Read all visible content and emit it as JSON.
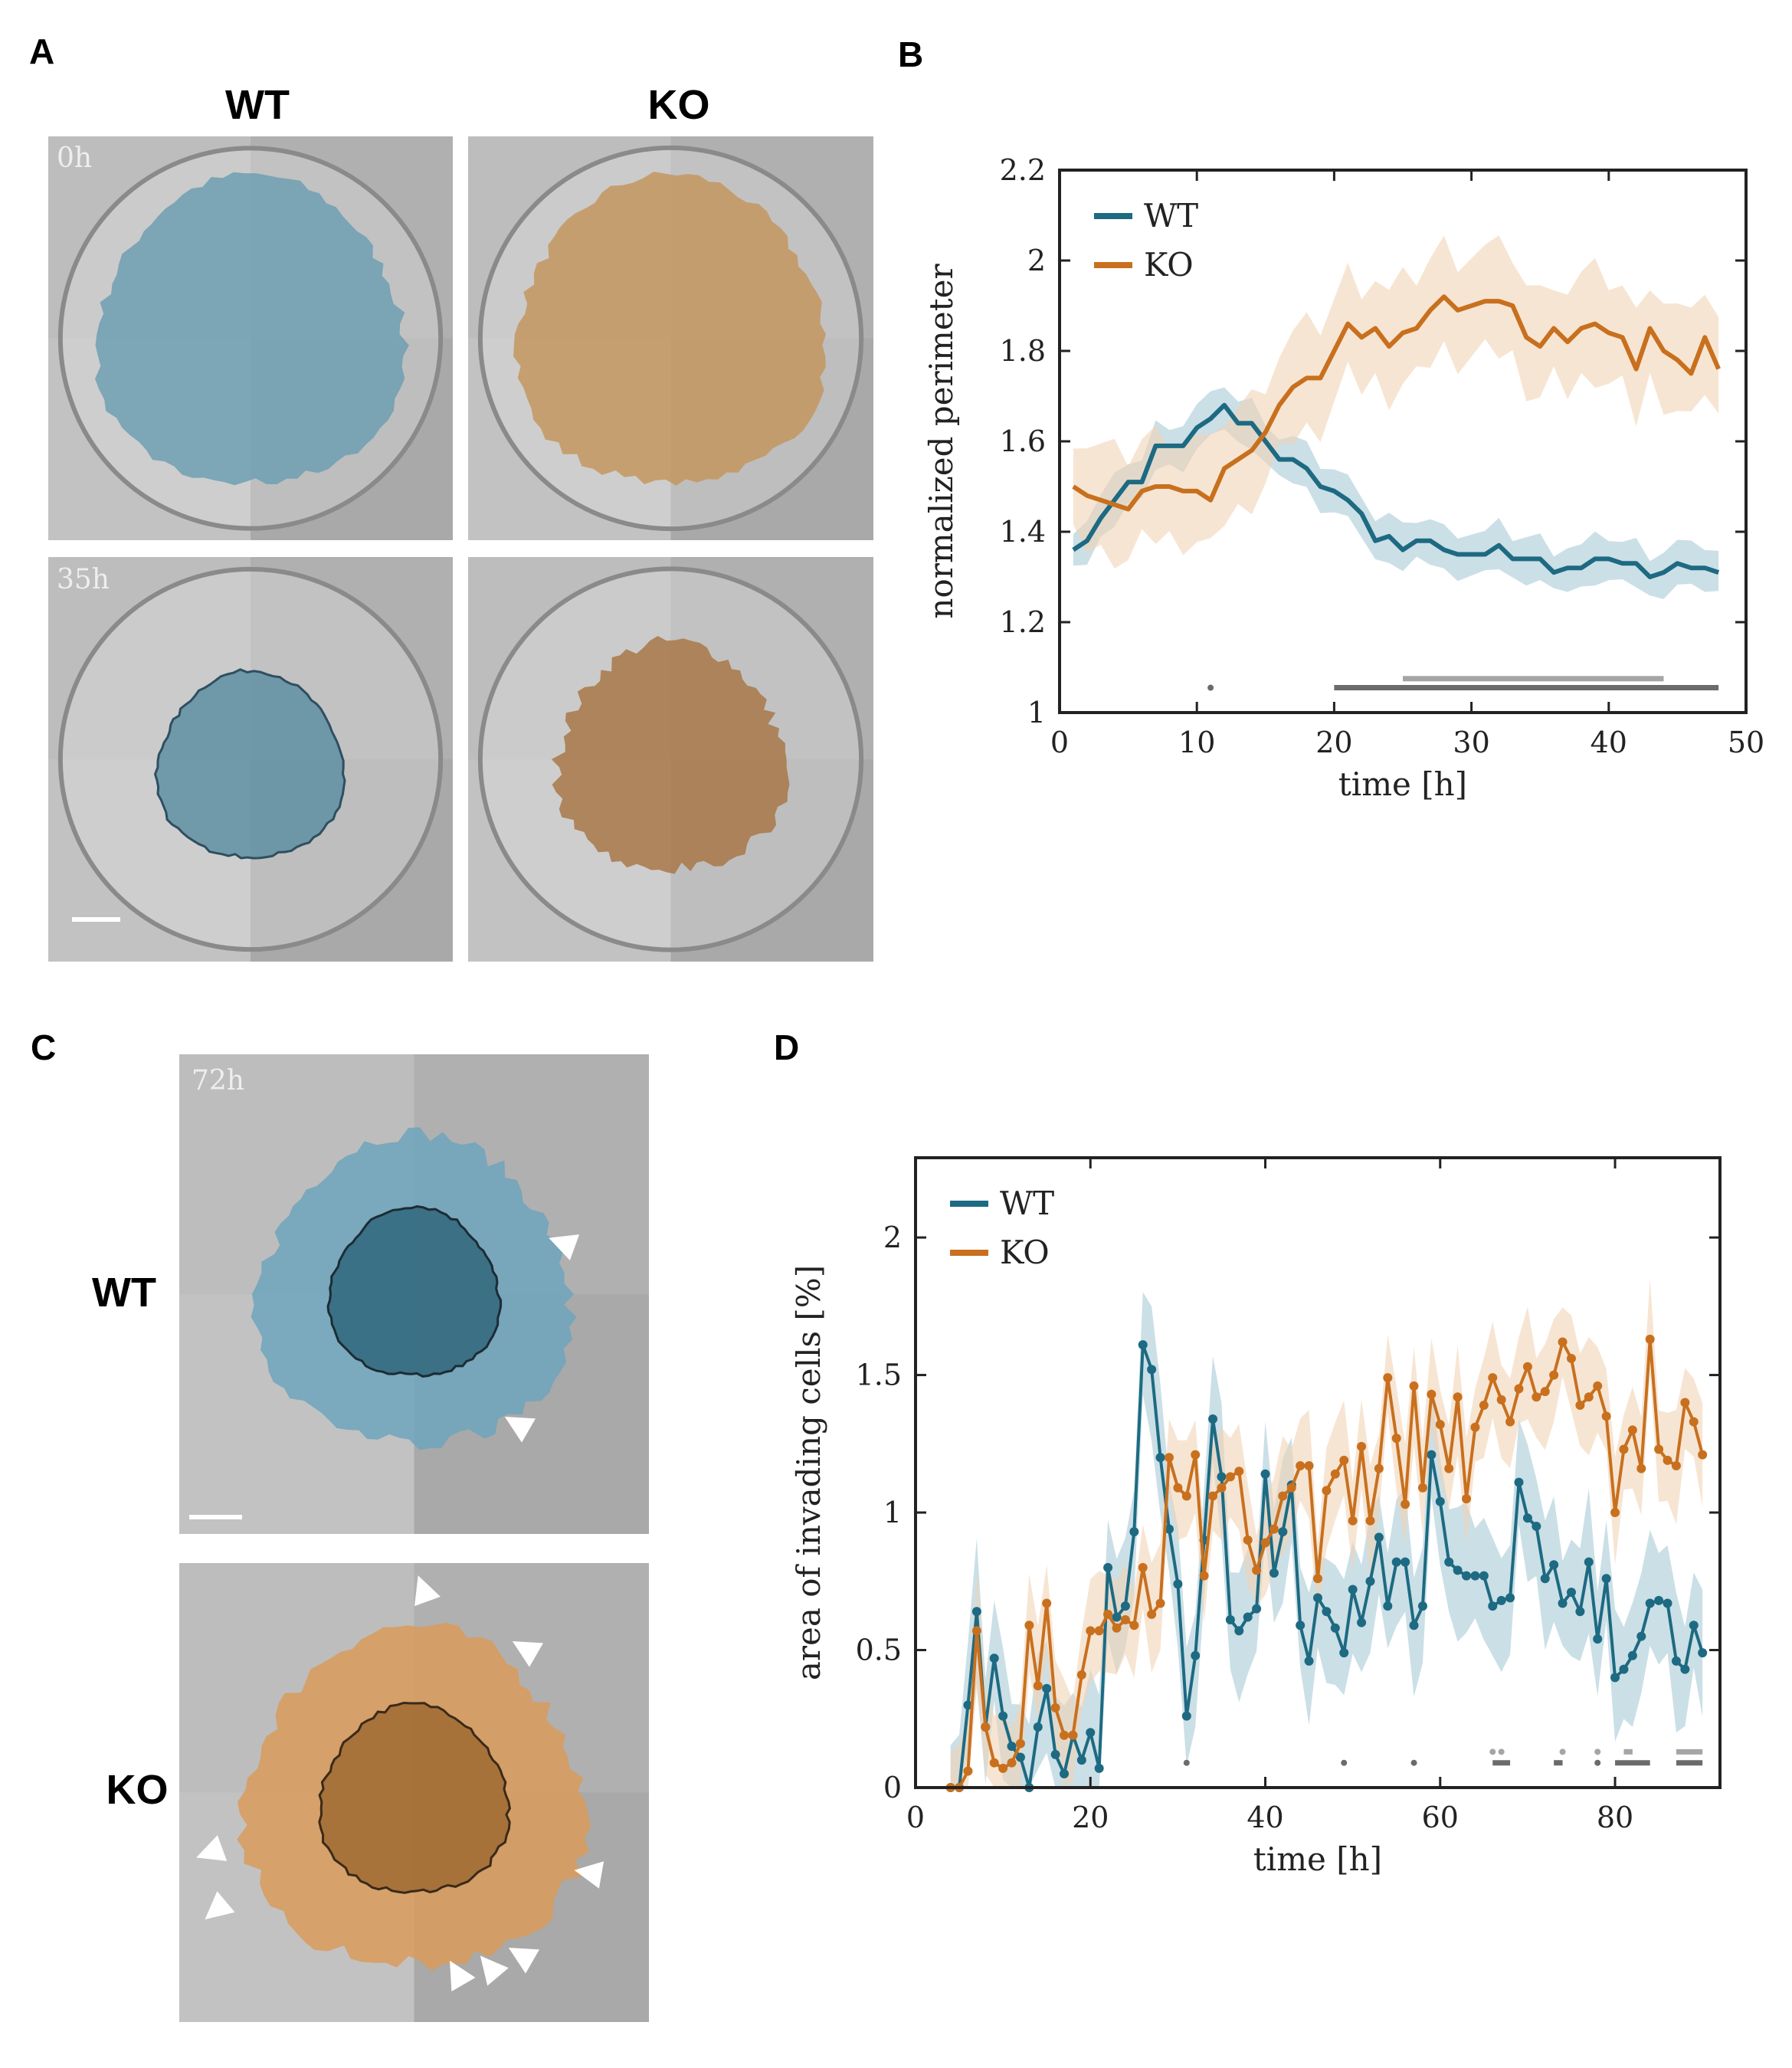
{
  "panels": {
    "A": {
      "letter": "A",
      "col_headers": [
        "WT",
        "KO"
      ],
      "time_labels": [
        "0h",
        "35h"
      ]
    },
    "B": {
      "letter": "B"
    },
    "C": {
      "letter": "C",
      "row_headers": [
        "WT",
        "KO"
      ],
      "time_label": "72h"
    },
    "D": {
      "letter": "D"
    }
  },
  "colors": {
    "WT": "#1d6a82",
    "KO": "#c8701e",
    "WT_band": "#a9c9d6",
    "KO_band": "#f1d4b5",
    "sig_dark": "#6b6b6b",
    "sig_light": "#a5a5a5"
  },
  "chart_data": [
    {
      "panel": "B",
      "type": "line",
      "xlabel": "time [h]",
      "ylabel": "normalized perimeter",
      "xlim": [
        0,
        50
      ],
      "ylim": [
        1,
        2.2
      ],
      "xticks": [
        0,
        10,
        20,
        30,
        40,
        50
      ],
      "yticks": [
        1,
        1.2,
        1.4,
        1.6,
        1.8,
        2,
        2.2
      ],
      "legend": "top-left",
      "x_start": 1,
      "x_step": 1,
      "series": [
        {
          "name": "WT",
          "band_halfwidth": 0.05,
          "values": [
            1.36,
            1.38,
            1.43,
            1.47,
            1.51,
            1.51,
            1.59,
            1.59,
            1.59,
            1.63,
            1.65,
            1.68,
            1.64,
            1.64,
            1.6,
            1.56,
            1.56,
            1.54,
            1.5,
            1.49,
            1.47,
            1.44,
            1.38,
            1.39,
            1.36,
            1.38,
            1.38,
            1.36,
            1.35,
            1.35,
            1.35,
            1.37,
            1.34,
            1.34,
            1.34,
            1.31,
            1.32,
            1.32,
            1.34,
            1.34,
            1.33,
            1.33,
            1.3,
            1.31,
            1.33,
            1.32,
            1.32,
            1.31
          ]
        },
        {
          "name": "KO",
          "band_halfwidth": 0.12,
          "values": [
            1.5,
            1.48,
            1.47,
            1.46,
            1.45,
            1.49,
            1.5,
            1.5,
            1.49,
            1.49,
            1.47,
            1.54,
            1.56,
            1.58,
            1.62,
            1.68,
            1.72,
            1.74,
            1.74,
            1.8,
            1.86,
            1.83,
            1.85,
            1.81,
            1.84,
            1.85,
            1.89,
            1.92,
            1.89,
            1.9,
            1.91,
            1.91,
            1.9,
            1.83,
            1.81,
            1.85,
            1.82,
            1.85,
            1.86,
            1.84,
            1.83,
            1.76,
            1.85,
            1.8,
            1.78,
            1.75,
            1.83,
            1.76
          ]
        }
      ],
      "significance": [
        {
          "level": "light",
          "y": 1.075,
          "ranges": [
            [
              25,
              44
            ]
          ]
        },
        {
          "level": "dark",
          "y": 1.055,
          "ranges": [
            [
              11,
              11
            ],
            [
              20,
              48
            ]
          ]
        }
      ]
    },
    {
      "panel": "D",
      "type": "line",
      "xlabel": "time [h]",
      "ylabel": "area of invading cells [%]",
      "xlim": [
        0,
        92
      ],
      "ylim": [
        0,
        2.29
      ],
      "xticks": [
        0,
        20,
        40,
        60,
        80
      ],
      "yticks": [
        0,
        0.5,
        1,
        1.5,
        2
      ],
      "legend": "top-left",
      "x_start": 4,
      "x_step": 1,
      "markers": true,
      "series": [
        {
          "name": "WT",
          "band_halfwidth": 0.22,
          "values": [
            0,
            0,
            0.3,
            0.64,
            0.22,
            0.47,
            0.26,
            0.15,
            0.11,
            0.0,
            0.22,
            0.36,
            0.12,
            0.05,
            0.19,
            0.1,
            0.2,
            0.07,
            0.8,
            0.62,
            0.66,
            0.93,
            1.61,
            1.52,
            1.2,
            0.94,
            0.74,
            0.26,
            0.48,
            0.9,
            1.34,
            1.13,
            0.61,
            0.57,
            0.62,
            0.65,
            1.14,
            0.78,
            0.93,
            1.1,
            0.59,
            0.46,
            0.69,
            0.64,
            0.58,
            0.49,
            0.72,
            0.6,
            0.75,
            0.91,
            0.66,
            0.82,
            0.82,
            0.59,
            0.66,
            1.21,
            1.04,
            0.82,
            0.79,
            0.77,
            0.77,
            0.77,
            0.66,
            0.68,
            0.69,
            1.11,
            0.98,
            0.95,
            0.76,
            0.81,
            0.67,
            0.71,
            0.64,
            0.82,
            0.54,
            0.76,
            0.4,
            0.43,
            0.48,
            0.55,
            0.67,
            0.68,
            0.67,
            0.46,
            0.43,
            0.59,
            0.49
          ]
        },
        {
          "name": "KO",
          "band_halfwidth": 0.18,
          "values": [
            0,
            0,
            0.06,
            0.57,
            0.22,
            0.09,
            0.07,
            0.09,
            0.16,
            0.59,
            0.37,
            0.67,
            0.29,
            0.19,
            0.19,
            0.41,
            0.57,
            0.57,
            0.63,
            0.58,
            0.61,
            0.59,
            0.8,
            0.63,
            0.67,
            1.2,
            1.09,
            1.06,
            1.21,
            0.77,
            1.06,
            1.09,
            1.13,
            1.15,
            0.9,
            0.79,
            0.89,
            0.94,
            1.06,
            1.09,
            1.17,
            1.17,
            0.76,
            1.08,
            1.14,
            1.19,
            0.97,
            1.24,
            0.97,
            1.16,
            1.49,
            1.27,
            1.03,
            1.46,
            1.09,
            1.43,
            1.32,
            1.16,
            1.42,
            1.05,
            1.31,
            1.39,
            1.49,
            1.41,
            1.33,
            1.45,
            1.53,
            1.42,
            1.44,
            1.5,
            1.62,
            1.56,
            1.39,
            1.42,
            1.46,
            1.35,
            1.0,
            1.23,
            1.3,
            1.16,
            1.63,
            1.23,
            1.19,
            1.17,
            1.4,
            1.33,
            1.21
          ]
        }
      ],
      "significance": [
        {
          "level": "light",
          "y": 0.13,
          "ranges": [
            [
              66,
              66
            ],
            [
              67,
              67
            ],
            [
              74,
              74
            ],
            [
              78,
              78
            ],
            [
              81,
              82
            ],
            [
              87,
              90
            ]
          ]
        },
        {
          "level": "dark",
          "y": 0.09,
          "ranges": [
            [
              31,
              31
            ],
            [
              49,
              49
            ],
            [
              57,
              57
            ],
            [
              66,
              68
            ],
            [
              73,
              74
            ],
            [
              78,
              78
            ],
            [
              80,
              84
            ],
            [
              87,
              90
            ]
          ]
        }
      ]
    }
  ]
}
